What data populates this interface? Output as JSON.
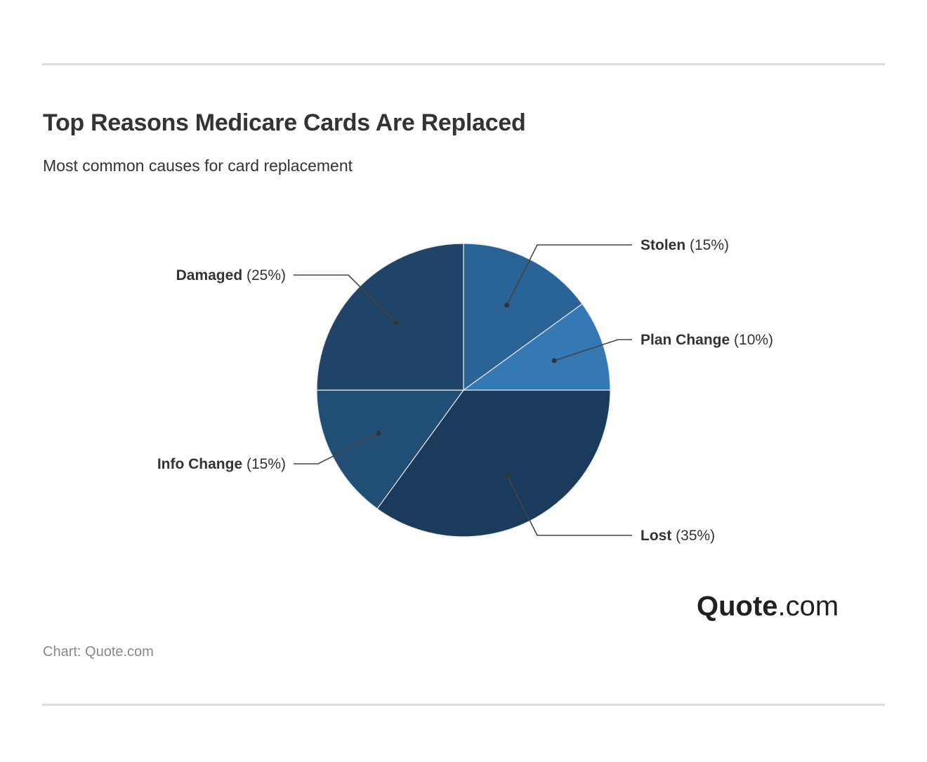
{
  "title": "Top Reasons Medicare Cards Are Replaced",
  "subtitle": "Most common causes for card replacement",
  "source": "Chart: Quote.com",
  "logo": {
    "brand": "Quote",
    "suffix": ".com"
  },
  "chart_data": {
    "type": "pie",
    "title": "Top Reasons Medicare Cards Are Replaced",
    "slices": [
      {
        "label": "Stolen",
        "value": 15,
        "display": "(15%)",
        "color": "#2a6496"
      },
      {
        "label": "Plan Change",
        "value": 10,
        "display": "(10%)",
        "color": "#3478b4"
      },
      {
        "label": "Lost",
        "value": 35,
        "display": "(35%)",
        "color": "#1a3b5b"
      },
      {
        "label": "Info Change",
        "value": 15,
        "display": "(15%)",
        "color": "#214e74"
      },
      {
        "label": "Damaged",
        "value": 25,
        "display": "(25%)",
        "color": "#1f4467"
      }
    ],
    "legend": "none",
    "label_style": "leader-lines"
  }
}
